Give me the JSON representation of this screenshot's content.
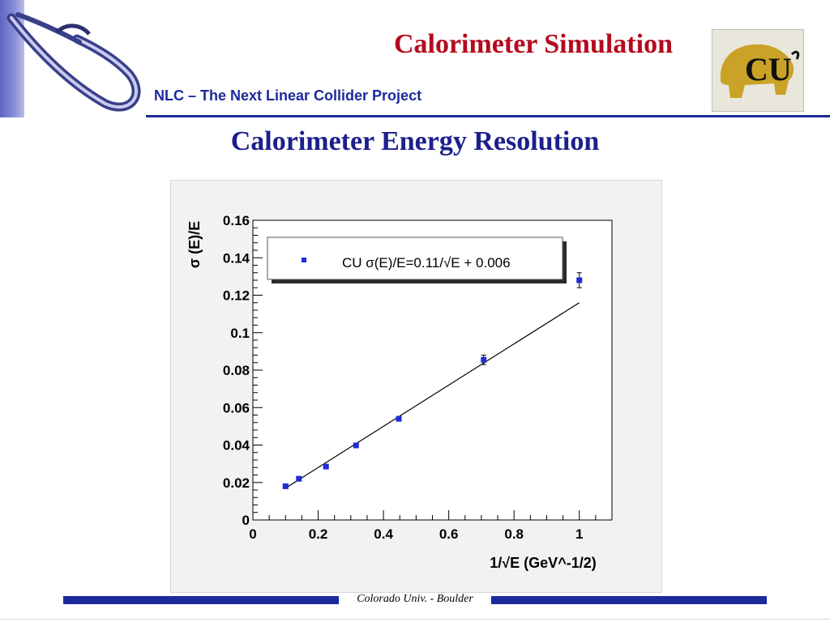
{
  "header": {
    "title": "Calorimeter Simulation",
    "project": "NLC – The Next Linear Collider Project"
  },
  "slide": {
    "subtitle": "Calorimeter Energy Resolution"
  },
  "footer": {
    "text": "Colorado Univ. - Boulder"
  },
  "logos": {
    "left": "nlc-swoosh-logo",
    "right": "cu-buffalo-logo"
  },
  "colors": {
    "title": "#b40a1e",
    "project": "#1c2a9c",
    "points": "#1f2bd6",
    "accent": "#1c2a9c"
  },
  "chart_data": {
    "type": "scatter",
    "title": "",
    "xlabel": "1/√E (GeV^-1/2)",
    "ylabel": "σ (E)/E",
    "xlim": [
      0,
      1.1
    ],
    "ylim": [
      0,
      0.16
    ],
    "xticks": [
      0,
      0.2,
      0.4,
      0.6,
      0.8,
      1
    ],
    "xtick_labels": [
      "0",
      "0.2",
      "0.4",
      "0.6",
      "0.8",
      "1"
    ],
    "yticks": [
      0,
      0.02,
      0.04,
      0.06,
      0.08,
      0.1,
      0.12,
      0.14,
      0.16
    ],
    "ytick_labels": [
      "0",
      "0.02",
      "0.04",
      "0.06",
      "0.08",
      "0.1",
      "0.12",
      "0.14",
      "0.16"
    ],
    "grid": false,
    "legend": "top-left inset",
    "legend_text": "CU σ(E)/E=0.11/√E + 0.006",
    "points": [
      {
        "x": 0.1,
        "y": 0.018,
        "err": 0.0007
      },
      {
        "x": 0.141,
        "y": 0.022,
        "err": 0.0007
      },
      {
        "x": 0.224,
        "y": 0.0285,
        "err": 0.0008
      },
      {
        "x": 0.316,
        "y": 0.0398,
        "err": 0.0009
      },
      {
        "x": 0.447,
        "y": 0.054,
        "err": 0.0012
      },
      {
        "x": 0.707,
        "y": 0.0855,
        "err": 0.0025
      },
      {
        "x": 1.0,
        "y": 0.128,
        "err": 0.004
      }
    ],
    "fit": {
      "slope": 0.11,
      "intercept": 0.006,
      "x_range": [
        0.1,
        1.0
      ]
    }
  }
}
